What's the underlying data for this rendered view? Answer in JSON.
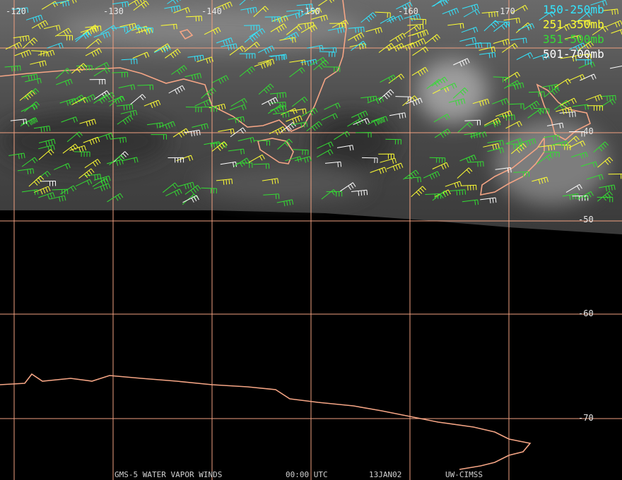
{
  "map": {
    "longitude_labels": [
      "-120",
      "-130",
      "-140",
      "-150",
      "-160",
      "-170"
    ],
    "latitude_labels": [
      "-40",
      "-50",
      "-60",
      "-70"
    ],
    "legend": [
      {
        "label": "150-250mb",
        "color": "#33e6ff"
      },
      {
        "label": "251-350mb",
        "color": "#ffff33"
      },
      {
        "label": "351-500mb",
        "color": "#33dd33"
      },
      {
        "label": "501-700mb",
        "color": "#ffffff"
      }
    ],
    "footer": [
      "GMS-5 WATER VAPOR WINDS",
      "00:00 UTC",
      "13JAN02",
      "UW-CIMSS"
    ]
  }
}
